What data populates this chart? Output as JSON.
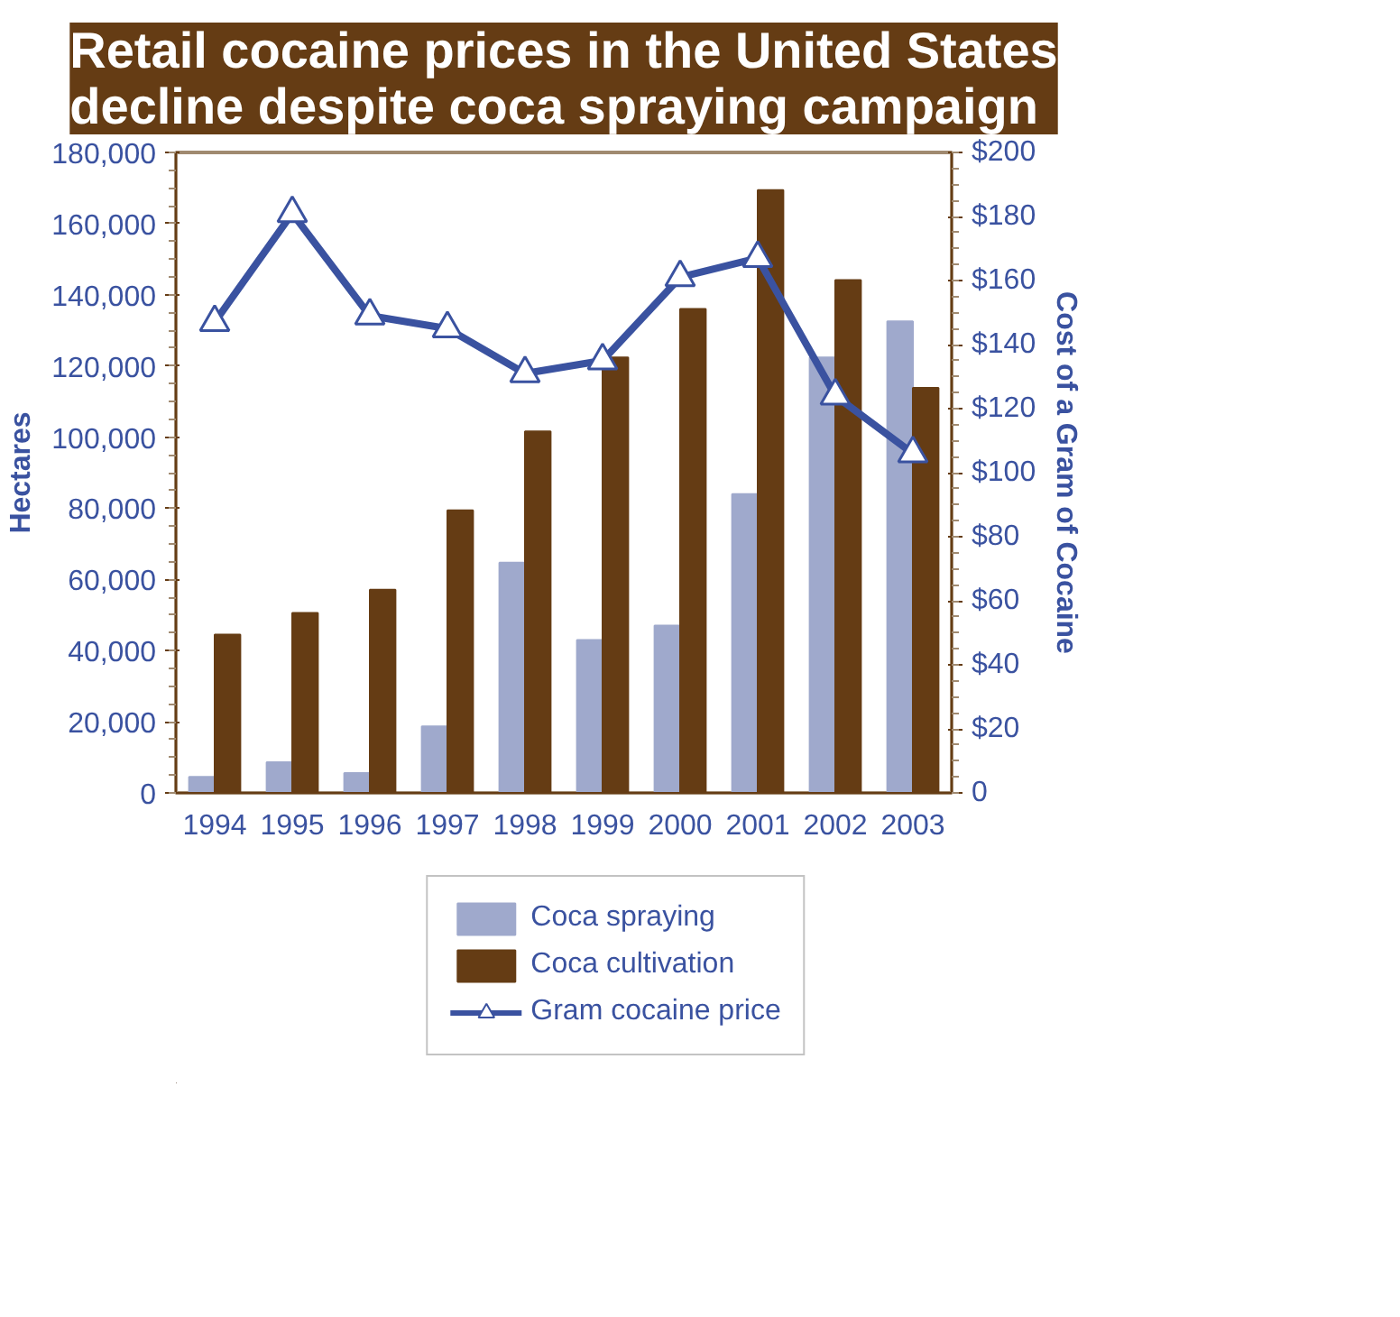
{
  "chart_data": {
    "type": "bar",
    "title": "Retail cocaine prices in the United States decline despite coca spraying campaign",
    "categories": [
      "1994",
      "1995",
      "1996",
      "1997",
      "1998",
      "1999",
      "2000",
      "2001",
      "2002",
      "2003"
    ],
    "series": [
      {
        "name": "Coca spraying",
        "color": "#9fa9cc",
        "values": [
          4500,
          8600,
          5600,
          18700,
          64700,
          43000,
          47000,
          84000,
          122400,
          132500
        ]
      },
      {
        "name": "Coca cultivation",
        "color": "#653c14",
        "values": [
          44500,
          50600,
          57100,
          79400,
          101600,
          122400,
          136000,
          169400,
          144100,
          113800
        ]
      },
      {
        "name": "Gram cocaine price",
        "type": "line",
        "axis": "y2",
        "color": "#3a52a0",
        "marker": "triangle",
        "values": [
          147,
          181,
          149,
          145,
          131,
          135,
          161,
          167,
          124,
          106
        ]
      }
    ],
    "ylabel": "Hectares",
    "y2label": "Cost of a Gram of Cocaine",
    "ylim": [
      0,
      180000
    ],
    "yticks": [
      0,
      {
        "value": 20000,
        "label": "20,000"
      },
      {
        "value": 40000,
        "label": "40,000"
      },
      {
        "value": 60000,
        "label": "60,000"
      },
      {
        "value": 80000,
        "label": "80,000"
      },
      {
        "value": 100000,
        "label": "100,000"
      },
      {
        "value": 120000,
        "label": "120,000"
      },
      {
        "value": 140000,
        "label": "140,000"
      },
      {
        "value": 160000,
        "label": "160,000"
      },
      {
        "value": 180000,
        "label": "180,000"
      }
    ],
    "y2lim": [
      0,
      200
    ],
    "y2ticks": [
      0,
      {
        "value": 20,
        "label": "$20"
      },
      {
        "value": 40,
        "label": "$40"
      },
      {
        "value": 60,
        "label": "$60"
      },
      {
        "value": 80,
        "label": "$80"
      },
      {
        "value": 100,
        "label": "$100"
      },
      {
        "value": 120,
        "label": "$120"
      },
      {
        "value": 140,
        "label": "$140"
      },
      {
        "value": 160,
        "label": "$160"
      },
      {
        "value": 180,
        "label": "$180"
      },
      {
        "value": 200,
        "label": "$200"
      }
    ],
    "grid": false,
    "legend": "bottom"
  }
}
